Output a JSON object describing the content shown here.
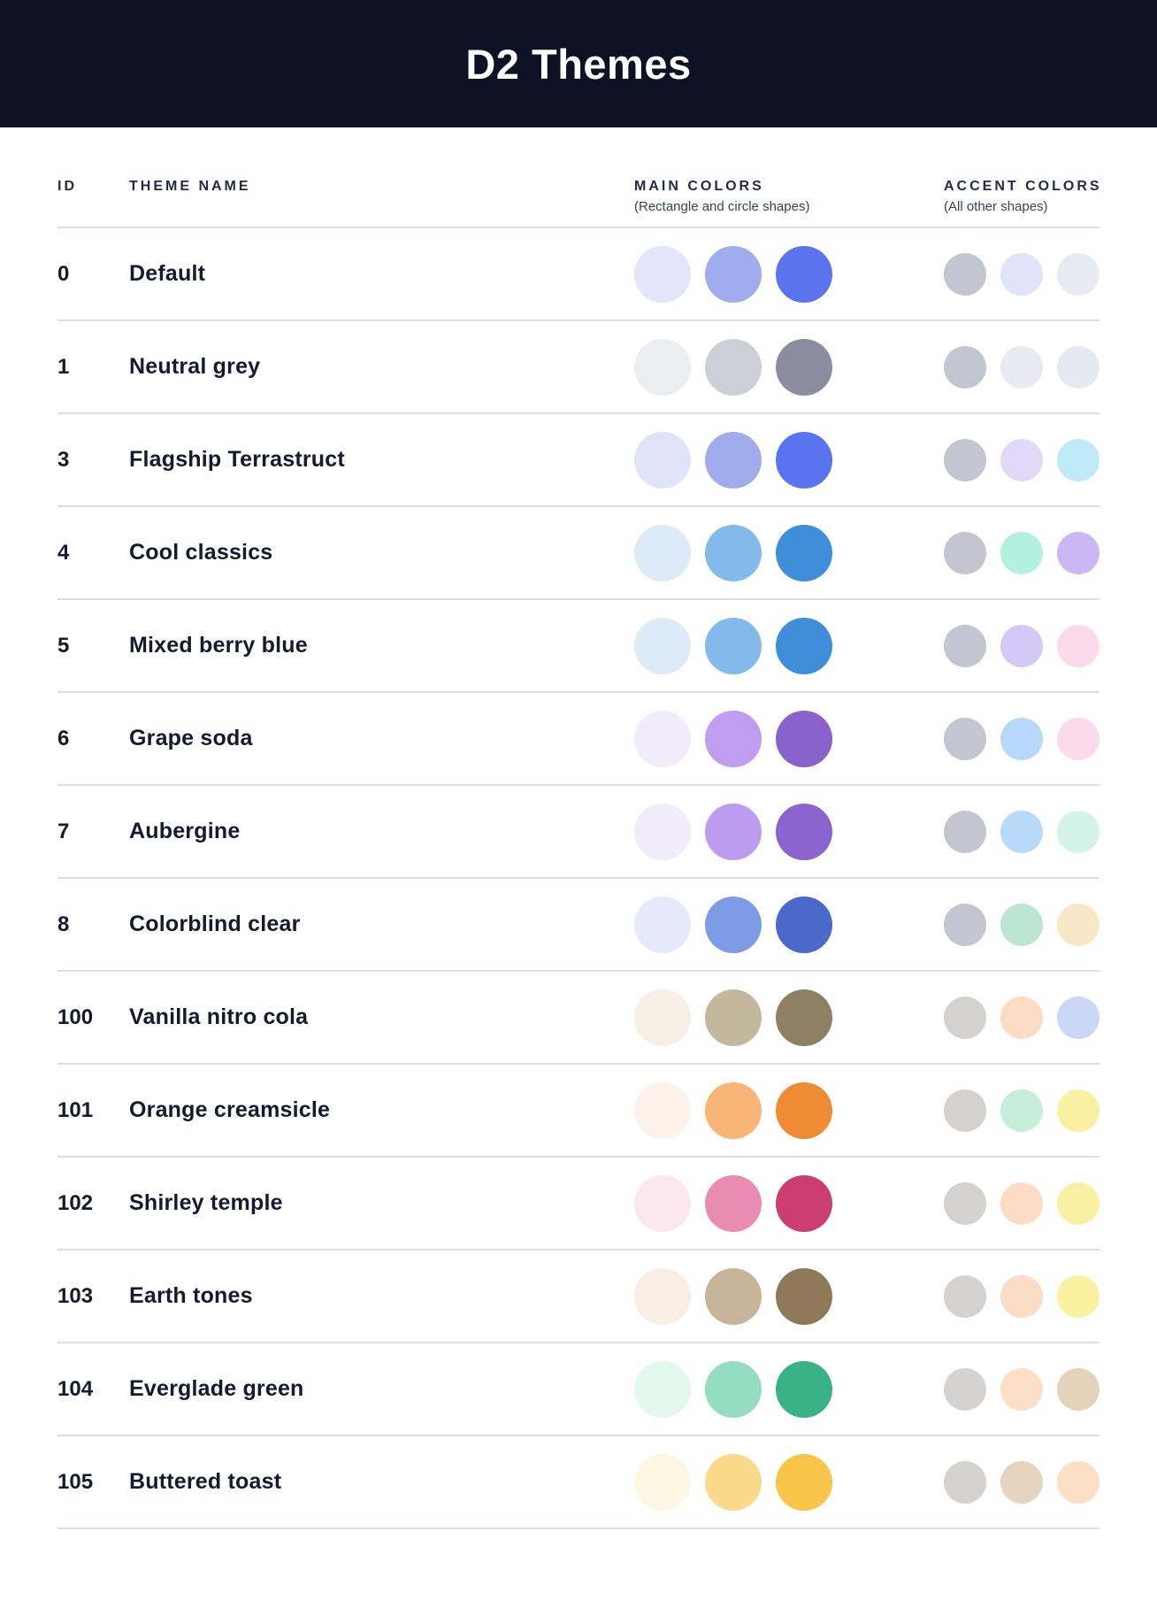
{
  "header": {
    "title": "D2 Themes",
    "background_color": "#0C1124",
    "text_color": "#FFFFFF"
  },
  "columns": {
    "id_label": "ID",
    "name_label": "THEME NAME",
    "main_label": "MAIN COLORS",
    "main_sublabel": "(Rectangle and circle shapes)",
    "accent_label": "ACCENT COLORS",
    "accent_sublabel": "(All other shapes)"
  },
  "rows": [
    {
      "id": "0",
      "name": "Default",
      "main_colors": [
        "#E3E6FA",
        "#9FACEE",
        "#5B73EC"
      ],
      "accent_colors": [
        "#C3C5D2",
        "#E1E3FA",
        "#E8EAF3"
      ]
    },
    {
      "id": "1",
      "name": "Neutral grey",
      "main_colors": [
        "#EBEDF2",
        "#CDCFD6",
        "#8A8D9D"
      ],
      "accent_colors": [
        "#C3C5D1",
        "#E9EAF1",
        "#E7E9F0"
      ]
    },
    {
      "id": "3",
      "name": "Flagship Terrastruct",
      "main_colors": [
        "#E0E4FA",
        "#A0ACEC",
        "#5A73EE"
      ],
      "accent_colors": [
        "#C3C5D1",
        "#E2D9F8",
        "#BEEBF7"
      ]
    },
    {
      "id": "4",
      "name": "Cool classics",
      "main_colors": [
        "#DCEBF7",
        "#82BAEB",
        "#3E8ED9"
      ],
      "accent_colors": [
        "#C4C5D1",
        "#B2F1E0",
        "#CBB7F3"
      ]
    },
    {
      "id": "5",
      "name": "Mixed berry blue",
      "main_colors": [
        "#DCEBF7",
        "#82BAEB",
        "#3E8ED9"
      ],
      "accent_colors": [
        "#C4C5D1",
        "#D4C9F6",
        "#FBDBEB"
      ]
    },
    {
      "id": "6",
      "name": "Grape soda",
      "main_colors": [
        "#F1EBFA",
        "#C09DEF",
        "#8A62CD"
      ],
      "accent_colors": [
        "#C4C5D1",
        "#B6D9F9",
        "#FBDBEB"
      ]
    },
    {
      "id": "7",
      "name": "Aubergine",
      "main_colors": [
        "#F1ECFA",
        "#BD9CEF",
        "#8A63CE"
      ],
      "accent_colors": [
        "#C4C5D1",
        "#B7DAF9",
        "#D4F3E9"
      ]
    },
    {
      "id": "8",
      "name": "Colorblind clear",
      "main_colors": [
        "#E4EAFB",
        "#7E9CE5",
        "#4A69CB"
      ],
      "accent_colors": [
        "#C4C5D1",
        "#BBE7D0",
        "#FAE7C6"
      ]
    },
    {
      "id": "100",
      "name": "Vanilla nitro cola",
      "main_colors": [
        "#F7EFE3",
        "#C3B79D",
        "#8F7F63"
      ],
      "accent_colors": [
        "#D3D2D0",
        "#FCDCC4",
        "#CBD7F6"
      ]
    },
    {
      "id": "101",
      "name": "Orange creamsicle",
      "main_colors": [
        "#FDF2E9",
        "#F9B478",
        "#EF8B35"
      ],
      "accent_colors": [
        "#D3D2D0",
        "#C6EED9",
        "#FAF0A1"
      ]
    },
    {
      "id": "102",
      "name": "Shirley temple",
      "main_colors": [
        "#FBE8EF",
        "#E88CB1",
        "#CA3E71"
      ],
      "accent_colors": [
        "#D3D2D0",
        "#FCDCC5",
        "#FAF0A3"
      ]
    },
    {
      "id": "103",
      "name": "Earth tones",
      "main_colors": [
        "#F8EEE3",
        "#C8B599",
        "#8E7A58"
      ],
      "accent_colors": [
        "#D3D2D0",
        "#FBDCC4",
        "#FAF0A0"
      ]
    },
    {
      "id": "104",
      "name": "Everglade green",
      "main_colors": [
        "#E3F8EF",
        "#95DDC0",
        "#39B286"
      ],
      "accent_colors": [
        "#D4D3D1",
        "#FCDFC6",
        "#E4D3BB"
      ]
    },
    {
      "id": "105",
      "name": "Buttered toast",
      "main_colors": [
        "#FDF7E4",
        "#FBD98A",
        "#F8C449"
      ],
      "accent_colors": [
        "#D4D3D1",
        "#E5D5BE",
        "#FCDEC5"
      ]
    }
  ]
}
